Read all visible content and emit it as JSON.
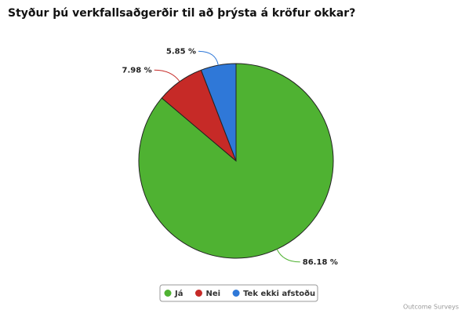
{
  "chart_data": {
    "type": "pie",
    "title": "Styður þú verkfallsaðgerðir til að þrýsta á kröfur okkar?",
    "categories": [
      "Já",
      "Nei",
      "Tek ekki afstoðu"
    ],
    "values": [
      86.18,
      7.98,
      5.85
    ],
    "value_labels": [
      "86.18 %",
      "7.98 %",
      "5.85 %"
    ],
    "colors": [
      "#4fb232",
      "#c62a27",
      "#2f78d8"
    ],
    "legend": "bottom",
    "credit": "Outcome Surveys"
  }
}
